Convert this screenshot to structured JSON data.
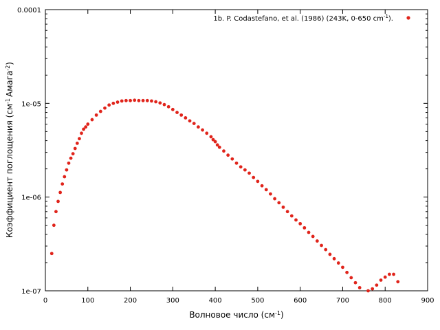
{
  "chart_data": {
    "type": "scatter",
    "xlabel": {
      "base": "Волновое число (см",
      "sup": "-1",
      "tail": ")"
    },
    "ylabel": {
      "base": "Коэффициент поглощения (см",
      "sup1": "-1",
      "mid": "Амага",
      "sup2": "-2",
      "tail": ")"
    },
    "xlim": [
      0,
      900
    ],
    "ylim": [
      1e-07,
      0.0001
    ],
    "yscale": "log",
    "grid": false,
    "legend_position": "top-right",
    "x_ticks": [
      {
        "value": 0,
        "label": "0"
      },
      {
        "value": 100,
        "label": "100"
      },
      {
        "value": 200,
        "label": "200"
      },
      {
        "value": 300,
        "label": "300"
      },
      {
        "value": 400,
        "label": "400"
      },
      {
        "value": 500,
        "label": "500"
      },
      {
        "value": 600,
        "label": "600"
      },
      {
        "value": 700,
        "label": "700"
      },
      {
        "value": 800,
        "label": "800"
      },
      {
        "value": 900,
        "label": "900"
      }
    ],
    "y_ticks": [
      {
        "value": 1e-07,
        "label": "1e-07"
      },
      {
        "value": 1e-06,
        "label": "1e-06"
      },
      {
        "value": 1e-05,
        "label": "1e-05"
      },
      {
        "value": 0.0001,
        "label": "0.0001"
      }
    ],
    "series": [
      {
        "name": "1b. P. Codastefano, et al. (1986) (243K, 0-650 cm",
        "name_sup": "-1",
        "name_tail": ").",
        "color": "#e0241b",
        "x": [
          15,
          20,
          25,
          30,
          35,
          40,
          45,
          50,
          55,
          60,
          65,
          70,
          75,
          80,
          85,
          90,
          95,
          100,
          110,
          120,
          130,
          140,
          150,
          160,
          170,
          180,
          190,
          200,
          210,
          220,
          230,
          240,
          250,
          260,
          270,
          280,
          290,
          300,
          310,
          320,
          330,
          340,
          350,
          360,
          370,
          380,
          390,
          395,
          400,
          405,
          410,
          420,
          430,
          440,
          450,
          460,
          470,
          480,
          490,
          500,
          510,
          520,
          530,
          540,
          550,
          560,
          570,
          580,
          590,
          600,
          610,
          620,
          630,
          640,
          650,
          660,
          670,
          680,
          690,
          700,
          710,
          720,
          730,
          740,
          750,
          760,
          770,
          780,
          790,
          800,
          810,
          820,
          830
        ],
        "y": [
          2.5e-07,
          5e-07,
          7e-07,
          9e-07,
          1.12e-06,
          1.38e-06,
          1.65e-06,
          1.95e-06,
          2.3e-06,
          2.6e-06,
          2.9e-06,
          3.3e-06,
          3.75e-06,
          4.2e-06,
          4.8e-06,
          5.3e-06,
          5.6e-06,
          6e-06,
          6.7e-06,
          7.5e-06,
          8.2e-06,
          8.9e-06,
          9.6e-06,
          1e-05,
          1.03e-05,
          1.06e-05,
          1.07e-05,
          1.07e-05,
          1.08e-05,
          1.07e-05,
          1.07e-05,
          1.07e-05,
          1.06e-05,
          1.04e-05,
          1.01e-05,
          9.7e-06,
          9.2e-06,
          8.6e-06,
          8e-06,
          7.5e-06,
          7e-06,
          6.5e-06,
          6.1e-06,
          5.6e-06,
          5.2e-06,
          4.8e-06,
          4.4e-06,
          4.1e-06,
          3.9e-06,
          3.6e-06,
          3.4e-06,
          3.1e-06,
          2.8e-06,
          2.55e-06,
          2.3e-06,
          2.1e-06,
          1.95e-06,
          1.8e-06,
          1.62e-06,
          1.47e-06,
          1.32e-06,
          1.2e-06,
          1.08e-06,
          9.6e-07,
          8.7e-07,
          7.8e-07,
          7e-07,
          6.3e-07,
          5.7e-07,
          5.2e-07,
          4.7e-07,
          4.2e-07,
          3.8e-07,
          3.4e-07,
          3.05e-07,
          2.75e-07,
          2.45e-07,
          2.2e-07,
          1.98e-07,
          1.78e-07,
          1.57e-07,
          1.38e-07,
          1.22e-07,
          1.08e-07,
          9.8e-08,
          1e-07,
          1.05e-07,
          1.15e-07,
          1.3e-07,
          1.4e-07,
          1.5e-07,
          1.5e-07,
          1.25e-07
        ]
      }
    ]
  }
}
